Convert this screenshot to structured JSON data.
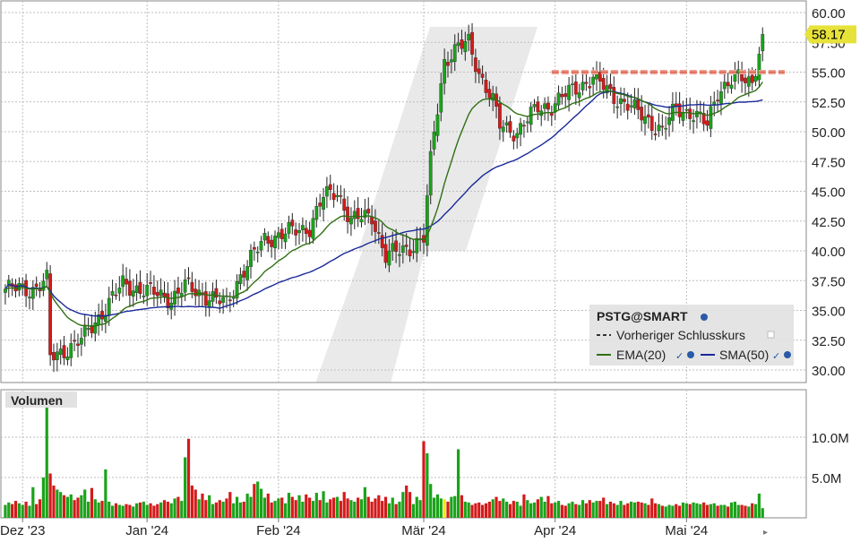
{
  "chart_data": [
    {
      "type": "candlestick",
      "symbol": "PSTG@SMART",
      "last_price": "58.17",
      "previous_close": 55.0,
      "ylim": [
        28.5,
        60.5
      ],
      "y_ticks": [
        "60.00",
        "57.50",
        "55.00",
        "52.50",
        "50.00",
        "47.50",
        "45.00",
        "42.50",
        "40.00",
        "37.50",
        "35.00",
        "32.50",
        "30.00"
      ],
      "x_ticks": [
        "Dez '23",
        "Jan '24",
        "Feb '24",
        "Mär '24",
        "Apr '24",
        "Mai '24"
      ],
      "x_tick_index": [
        5,
        41,
        79,
        121,
        159,
        197
      ],
      "grid": true,
      "legend": {
        "title": "PSTG@SMART",
        "items": [
          "Vorheriger Schlusskurs",
          "EMA(20)",
          "SMA(50)"
        ],
        "placement": "bottom-right"
      },
      "series": [
        {
          "name": "EMA(20)",
          "color": "#2f6f12"
        },
        {
          "name": "SMA(50)",
          "color": "#1a2a9a"
        }
      ],
      "anchors": [
        [
          0,
          36.8
        ],
        [
          8,
          36.8
        ],
        [
          12,
          37.5
        ],
        [
          13,
          31.0
        ],
        [
          22,
          32.5
        ],
        [
          34,
          37.2
        ],
        [
          48,
          36.0
        ],
        [
          52,
          37.0
        ],
        [
          60,
          36.0
        ],
        [
          64,
          35.5
        ],
        [
          68,
          38.0
        ],
        [
          75,
          41.0
        ],
        [
          88,
          42.0
        ],
        [
          92,
          44.5
        ],
        [
          96,
          45.0
        ],
        [
          100,
          42.5
        ],
        [
          106,
          43.0
        ],
        [
          110,
          39.5
        ],
        [
          118,
          40.5
        ],
        [
          121,
          41.0
        ],
        [
          123,
          47.5
        ],
        [
          124,
          50.0
        ],
        [
          127,
          56.0
        ],
        [
          131,
          57.0
        ],
        [
          134,
          57.5
        ],
        [
          137,
          55.0
        ],
        [
          141,
          52.5
        ],
        [
          143,
          50.5
        ],
        [
          148,
          50.0
        ],
        [
          154,
          52.0
        ],
        [
          158,
          52.2
        ],
        [
          164,
          53.5
        ],
        [
          170,
          54.5
        ],
        [
          176,
          53.0
        ],
        [
          181,
          52.0
        ],
        [
          186,
          51.0
        ],
        [
          190,
          50.0
        ],
        [
          194,
          52.0
        ],
        [
          199,
          51.5
        ],
        [
          203,
          50.5
        ],
        [
          206,
          53.5
        ],
        [
          211,
          54.5
        ],
        [
          216,
          54.2
        ],
        [
          219,
          58.17
        ]
      ]
    },
    {
      "type": "bar",
      "title": "Volumen",
      "y_ticks": [
        "10.0M",
        "5.0M"
      ],
      "ylim": [
        0,
        14500000
      ],
      "colors": {
        "up": "#1aa31a",
        "down": "#d41a1a",
        "highlight": "#f2e618"
      },
      "series": [
        {
          "name": "Volumen",
          "values": [
            1.6,
            1.9,
            1.7,
            2.1,
            1.8,
            1.6,
            2.0,
            1.5,
            3.8,
            1.7,
            2.3,
            5.0,
            14.2,
            5.5,
            4.0,
            3.5,
            3.2,
            2.8,
            2.6,
            2.9,
            2.2,
            2.5,
            2.8,
            3.5,
            2.0,
            3.7,
            2.3,
            1.9,
            2.1,
            6.0,
            2.0,
            1.5,
            1.8,
            1.6,
            1.5,
            1.7,
            1.6,
            1.4,
            1.8,
            1.9,
            2.0,
            1.6,
            1.8,
            1.5,
            1.7,
            1.9,
            2.2,
            2.0,
            1.8,
            2.4,
            2.6,
            2.1,
            7.5,
            9.8,
            4.0,
            3.5,
            2.3,
            3.0,
            2.2,
            2.8,
            1.7,
            1.9,
            2.2,
            2.0,
            2.4,
            3.2,
            1.8,
            2.6,
            1.9,
            2.0,
            3.0,
            2.6,
            4.2,
            4.5,
            3.6,
            2.5,
            3.0,
            1.9,
            2.1,
            2.4,
            2.5,
            1.8,
            3.1,
            2.6,
            2.2,
            2.8,
            2.0,
            2.9,
            2.5,
            2.1,
            3.1,
            2.2,
            3.3,
            1.9,
            2.3,
            2.5,
            2.6,
            2.1,
            3.2,
            2.4,
            2.2,
            2.0,
            2.5,
            2.3,
            3.8,
            2.6,
            2.0,
            2.4,
            2.8,
            2.1,
            2.6,
            1.8,
            2.5,
            1.7,
            2.0,
            3.2,
            4.0,
            3.2,
            1.7,
            2.6,
            2.2,
            9.5,
            8.0,
            4.2,
            2.5,
            2.9,
            2.4,
            2.3,
            2.0,
            2.6,
            2.7,
            8.5,
            2.8,
            2.0,
            1.9,
            1.6,
            1.8,
            1.9,
            1.6,
            1.8,
            2.0,
            2.3,
            2.6,
            2.1,
            2.4,
            2.0,
            1.7,
            2.1,
            2.0,
            1.5,
            2.9,
            2.2,
            1.8,
            1.9,
            2.3,
            2.6,
            2.0,
            2.7,
            1.8,
            1.9,
            2.1,
            1.6,
            1.5,
            1.8,
            2.0,
            1.7,
            1.6,
            2.2,
            1.8,
            2.2,
            1.9,
            2.1,
            2.1,
            2.5,
            1.7,
            2.0,
            1.8,
            1.6,
            2.1,
            1.6,
            1.8,
            2.0,
            1.9,
            2.0,
            1.9,
            1.8,
            1.6,
            2.4,
            1.8,
            1.7,
            1.5,
            1.4,
            1.6,
            1.5,
            1.7,
            1.5,
            1.9,
            1.8,
            1.7,
            1.9,
            1.8,
            1.7,
            1.9,
            1.6,
            1.7,
            1.8,
            1.5,
            1.6,
            1.6,
            1.4,
            1.9,
            2.0,
            1.6,
            1.6,
            1.5,
            1.4,
            1.8,
            1.7,
            3.0,
            1.2
          ],
          "scale": 1000000
        }
      ]
    }
  ]
}
